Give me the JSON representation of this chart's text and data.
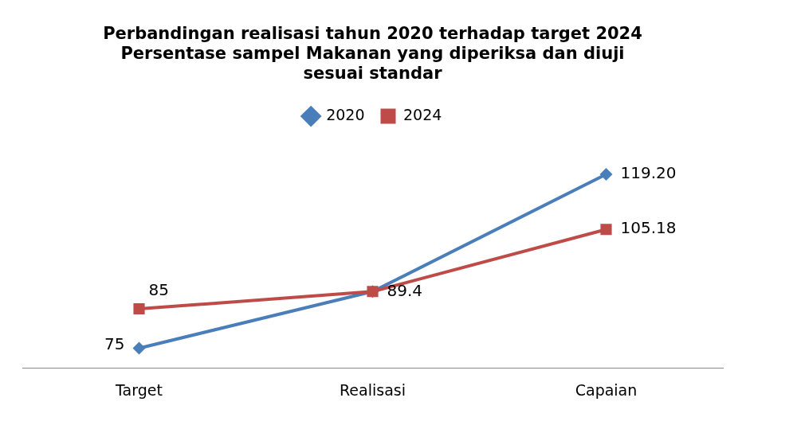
{
  "chart_data": {
    "type": "line",
    "title": "Perbandingan realisasi tahun 2020 terhadap target 2024\nPersentase sampel Makanan yang diperiksa dan diuji\nsesuai standar",
    "categories": [
      "Target",
      "Realisasi",
      "Capaian"
    ],
    "series": [
      {
        "name": "2020",
        "color": "#4a7ebb",
        "marker": "diamond",
        "values": [
          75,
          89.4,
          119.2
        ],
        "value_labels": [
          "75",
          "89.4",
          "119.20"
        ]
      },
      {
        "name": "2024",
        "color": "#be4b48",
        "marker": "square",
        "values": [
          85,
          89.4,
          105.18
        ],
        "value_labels": [
          "85",
          null,
          "105.18"
        ]
      }
    ],
    "tick_labels": "x",
    "legend": "top",
    "grid": false
  }
}
